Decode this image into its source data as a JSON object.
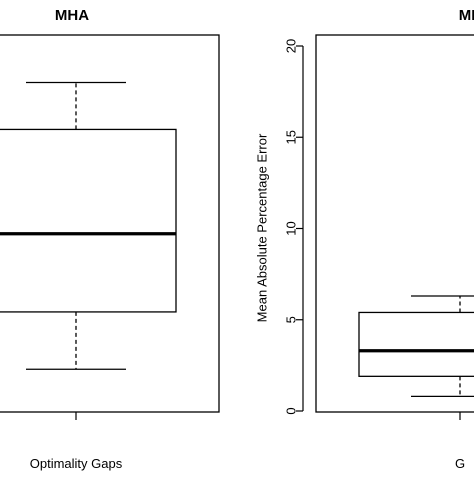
{
  "chart_data": [
    {
      "type": "box",
      "title": "MHA",
      "xlabel": "",
      "ylabel": "",
      "categories": [
        "Optimality Gaps"
      ],
      "boxes": [
        {
          "whisker_low": 0.8,
          "q1": 1.9,
          "median": 3.4,
          "q3": 5.4,
          "whisker_high": 6.3
        }
      ],
      "ylim": [
        0,
        7.0
      ],
      "grid": false,
      "legend": "none"
    },
    {
      "type": "box",
      "title": "ME",
      "xlabel": "",
      "ylabel": "Mean Absolute Percentage Error",
      "categories": [
        "G"
      ],
      "boxes": [
        {
          "whisker_low": 0.8,
          "q1": 1.9,
          "median": 3.3,
          "q3": 5.4,
          "whisker_high": 6.3
        }
      ],
      "ylim": [
        0,
        20
      ],
      "yticks": [
        "0",
        "5",
        "10",
        "15",
        "20"
      ],
      "grid": false,
      "legend": "none"
    }
  ]
}
